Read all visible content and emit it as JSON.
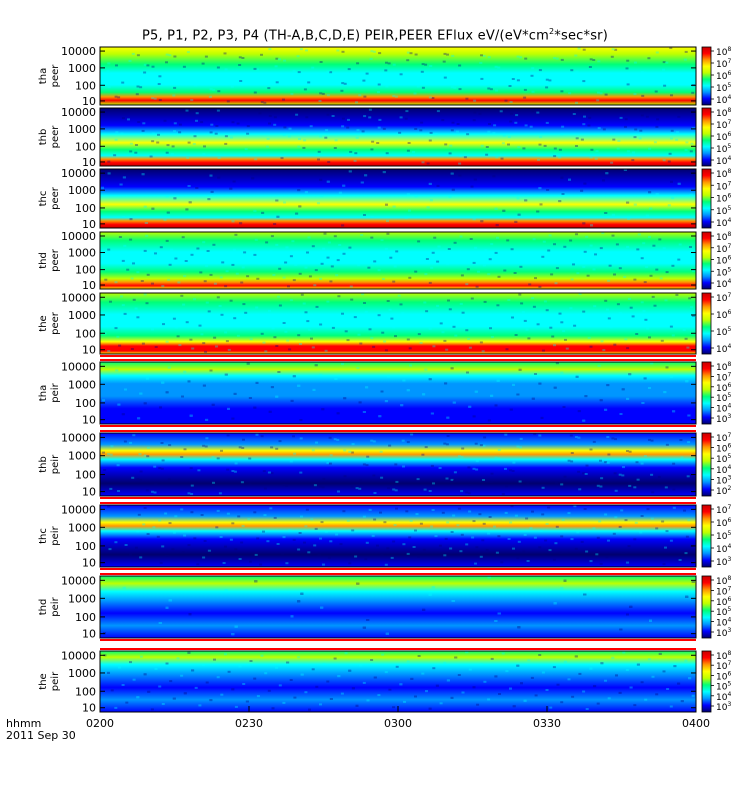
{
  "title": {
    "prefix": "P5, P1, P2, P3, P4 (TH-A,B,C,D,E) PEIR,PEER EFlux eV/(eV*cm",
    "sup": "2",
    "suffix": "*sec*sr)"
  },
  "chart_data": {
    "type": "heatmap",
    "x_ticks": [
      "0200",
      "0230",
      "0300",
      "0330",
      "0400"
    ],
    "x_label_row1": "hhmm",
    "x_label_row2": "2011 Sep 30",
    "y_ticks": [
      "10000",
      "1000",
      "100",
      "10"
    ],
    "y_scale": "log",
    "colorbar_scale": "log",
    "panels": [
      {
        "ylabel1": "tha",
        "ylabel2": "peer",
        "cb_exponents": [
          8,
          7,
          6,
          5,
          4
        ],
        "pattern": "peer-a"
      },
      {
        "ylabel1": "thb",
        "ylabel2": "peer",
        "cb_exponents": [
          8,
          7,
          6,
          5,
          4
        ],
        "pattern": "peer-bc"
      },
      {
        "ylabel1": "thc",
        "ylabel2": "peer",
        "cb_exponents": [
          8,
          7,
          6,
          5,
          4
        ],
        "pattern": "peer-bc"
      },
      {
        "ylabel1": "thd",
        "ylabel2": "peer",
        "cb_exponents": [
          8,
          7,
          6,
          5,
          4
        ],
        "pattern": "peer-d"
      },
      {
        "ylabel1": "the",
        "ylabel2": "peer",
        "cb_exponents": [
          7,
          6,
          5,
          4
        ],
        "pattern": "peer-e"
      },
      {
        "ylabel1": "tha",
        "ylabel2": "peir",
        "cb_exponents": [
          8,
          7,
          6,
          5,
          4,
          3
        ],
        "pattern": "peir-a"
      },
      {
        "ylabel1": "thb",
        "ylabel2": "peir",
        "cb_exponents": [
          7,
          6,
          5,
          4,
          3,
          2
        ],
        "pattern": "peir-bc"
      },
      {
        "ylabel1": "thc",
        "ylabel2": "peir",
        "cb_exponents": [
          7,
          6,
          5,
          4,
          3
        ],
        "pattern": "peir-bc"
      },
      {
        "ylabel1": "thd",
        "ylabel2": "peir",
        "cb_exponents": [
          8,
          7,
          6,
          5,
          4,
          3
        ],
        "pattern": "peir-d"
      },
      {
        "ylabel1": "the",
        "ylabel2": "peir",
        "cb_exponents": [
          8,
          7,
          6,
          5,
          4,
          3
        ],
        "pattern": "peir-e"
      }
    ],
    "colors": {
      "background": "#ffffff",
      "separator": "#ff0000",
      "colormap": [
        "#00006e",
        "#0000ff",
        "#0096ff",
        "#00ffff",
        "#00ff78",
        "#bfff00",
        "#ffff00",
        "#ff9600",
        "#ff0000",
        "#c80000"
      ]
    }
  }
}
